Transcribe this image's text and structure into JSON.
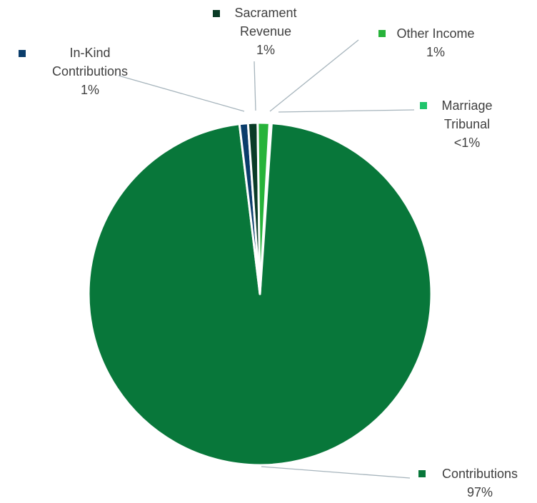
{
  "chart_data": {
    "type": "pie",
    "title": "",
    "slices": [
      {
        "name": "Contributions",
        "value": 97,
        "display": "97%",
        "color": "#08773A"
      },
      {
        "name": "In-Kind Contributions",
        "value": 0.8,
        "display": "1%",
        "color": "#0B3D6B"
      },
      {
        "name": "Sacrament Revenue",
        "value": 0.9,
        "display": "1%",
        "color": "#0A3B26"
      },
      {
        "name": "Other Income",
        "value": 1.1,
        "display": "1%",
        "color": "#27B33A"
      },
      {
        "name": "Marriage Tribunal",
        "value": 0.2,
        "display": "<1%",
        "color": "#1FC46B"
      }
    ],
    "labels": [
      {
        "slice": "Contributions",
        "lines": [
          "Contributions",
          "97%"
        ]
      },
      {
        "slice": "In-Kind Contributions",
        "lines": [
          "In-Kind",
          "Contributions",
          "1%"
        ]
      },
      {
        "slice": "Sacrament Revenue",
        "lines": [
          "Sacrament",
          "Revenue",
          "1%"
        ]
      },
      {
        "slice": "Other Income",
        "lines": [
          "Other Income",
          "1%"
        ]
      },
      {
        "slice": "Marriage Tribunal",
        "lines": [
          "Marriage",
          "Tribunal",
          "<1%"
        ]
      }
    ]
  }
}
